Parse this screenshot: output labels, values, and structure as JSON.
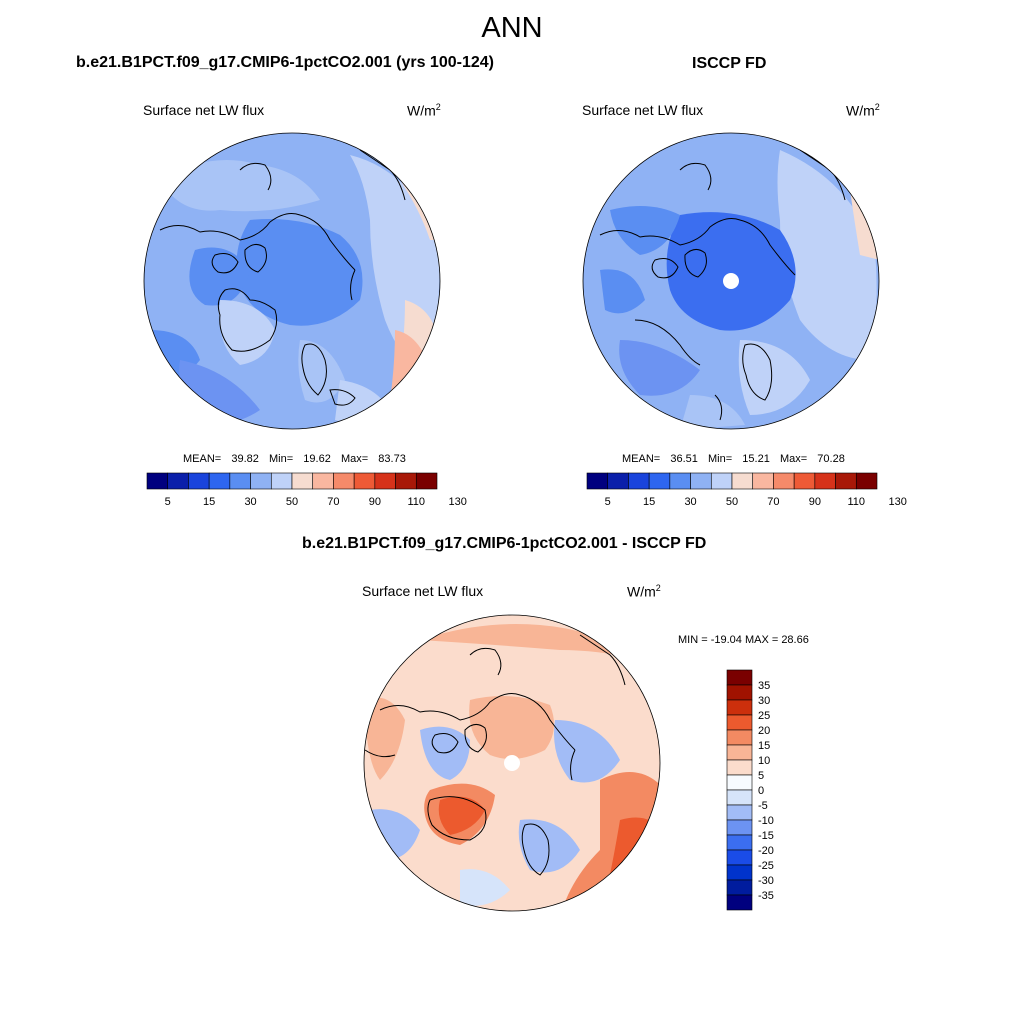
{
  "main_title": "ANN",
  "colors": {
    "abs_scale": [
      "#00007f",
      "#0a1faa",
      "#1a44dc",
      "#2e66f0",
      "#5a8ef2",
      "#8fb2f4",
      "#bfd2f8",
      "#f6dcd0",
      "#f9b7a0",
      "#f58a6a",
      "#ee5a36",
      "#d6321a",
      "#a81808",
      "#7a0000"
    ],
    "diff_scale": [
      "#00007f",
      "#001c9e",
      "#0033cc",
      "#1a4ce8",
      "#3b6ef0",
      "#6c93f2",
      "#a2bcf6",
      "#d6e4fa",
      "#f7fbff",
      "#fbdccc",
      "#f8b596",
      "#f38a62",
      "#ec5a2e",
      "#cc2f0c",
      "#a01200",
      "#7a0000"
    ]
  },
  "panels": {
    "model": {
      "case_title": "b.e21.B1PCT.f09_g17.CMIP6-1pctCO2.001 (yrs 100-124)",
      "variable": "Surface net LW flux",
      "units": "W/m",
      "units_sup": "2",
      "stats": {
        "mean_label": "MEAN=",
        "mean": "39.82",
        "min_label": "Min=",
        "min": "19.62",
        "max_label": "Max=",
        "max": "83.73"
      },
      "colorbar_labels": [
        "5",
        "15",
        "30",
        "50",
        "70",
        "90",
        "110",
        "130"
      ]
    },
    "obs": {
      "case_title": "ISCCP FD",
      "variable": "Surface net LW flux",
      "units": "W/m",
      "units_sup": "2",
      "stats": {
        "mean_label": "MEAN=",
        "mean": "36.51",
        "min_label": "Min=",
        "min": "15.21",
        "max_label": "Max=",
        "max": "70.28"
      },
      "colorbar_labels": [
        "5",
        "15",
        "30",
        "50",
        "70",
        "90",
        "110",
        "130"
      ]
    },
    "diff": {
      "case_title": "b.e21.B1PCT.f09_g17.CMIP6-1pctCO2.001 - ISCCP FD",
      "variable": "Surface net LW flux",
      "units": "W/m",
      "units_sup": "2",
      "minmax": "MIN = -19.04 MAX =  28.66",
      "colorbar_labels": [
        "35",
        "30",
        "25",
        "20",
        "15",
        "10",
        "5",
        "0",
        "-5",
        "-10",
        "-15",
        "-20",
        "-25",
        "-30",
        "-35"
      ]
    }
  }
}
